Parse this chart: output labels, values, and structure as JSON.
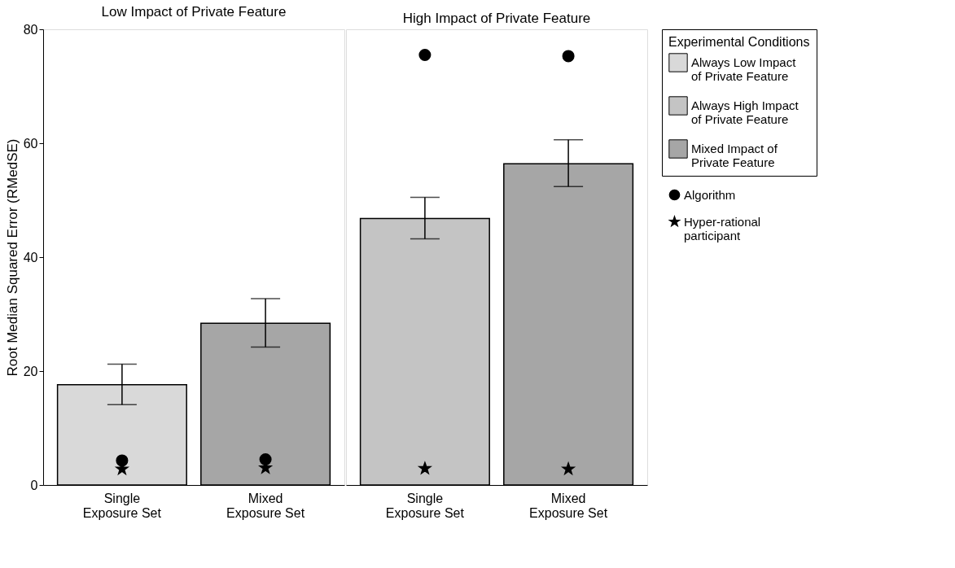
{
  "chart_data": [
    {
      "type": "bar",
      "title": "Low Impact of Private Feature",
      "ylabel": "Root Median Squared Error (RMedSE)",
      "categories": [
        "Single Exposure Set",
        "Mixed Exposure Set"
      ],
      "ylim": [
        0,
        80
      ],
      "yticks": [
        0,
        20,
        40,
        60,
        80
      ],
      "grid": false,
      "legend": "right",
      "series": [
        {
          "name": "Always Low Impact of Private Feature",
          "color": "#d9d9d9",
          "values": [
            17.6,
            null
          ],
          "errors": [
            [
              14.1,
              21.2
            ],
            null
          ]
        },
        {
          "name": "Mixed Impact of Private Feature",
          "color": "#a6a6a6",
          "values": [
            null,
            28.4
          ],
          "errors": [
            null,
            [
              24.2,
              32.7
            ]
          ]
        },
        {
          "name": "Algorithm",
          "type": "scatter",
          "marker": "circle",
          "color": "#000000",
          "values": [
            4.3,
            4.5
          ]
        },
        {
          "name": "Hyper-rational participant",
          "type": "scatter",
          "marker": "star",
          "color": "#000000",
          "values": [
            2.8,
            3.0
          ]
        }
      ]
    },
    {
      "type": "bar",
      "title": "High Impact of Private Feature",
      "legend_title": "Experimental Conditions",
      "categories": [
        "Single Exposure Set",
        "Mixed Exposure Set"
      ],
      "ylim": [
        0,
        80
      ],
      "yticks": [
        0,
        20,
        40,
        60,
        80
      ],
      "grid": false,
      "legend": "right",
      "tick_labels": "x",
      "series": [
        {
          "name": "Always High Impact of Private Feature",
          "color": "#c4c4c4",
          "values": [
            46.8,
            null
          ],
          "errors": [
            [
              43.2,
              50.5
            ],
            null
          ]
        },
        {
          "name": "Mixed Impact of Private Feature",
          "color": "#a6a6a6",
          "values": [
            null,
            56.4
          ],
          "errors": [
            null,
            [
              52.4,
              60.6
            ]
          ]
        },
        {
          "name": "Algorithm",
          "type": "scatter",
          "marker": "circle",
          "color": "#000000",
          "values": [
            75.5,
            75.3
          ]
        },
        {
          "name": "Hyper-rational participant",
          "type": "scatter",
          "marker": "star",
          "color": "#000000",
          "values": [
            2.9,
            2.8
          ]
        }
      ]
    }
  ]
}
